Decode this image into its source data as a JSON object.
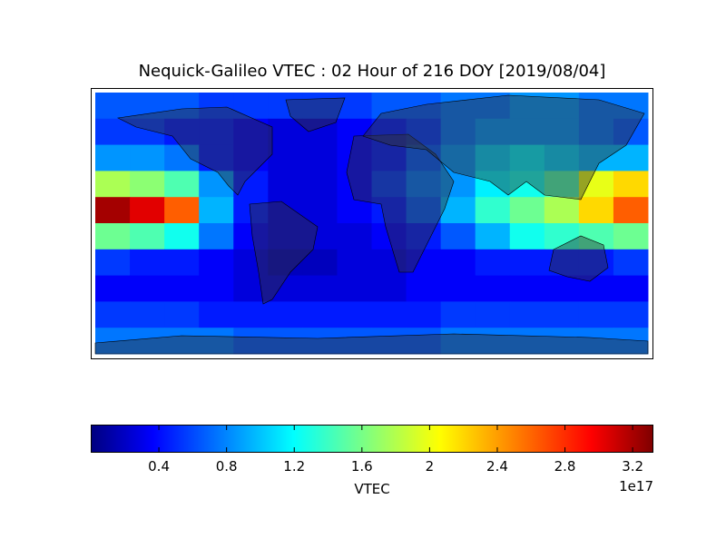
{
  "chart_data": {
    "type": "heatmap",
    "title": "Nequick-Galileo VTEC : 02 Hour of 216 DOY [2019/08/04]",
    "xlim": [
      -180,
      180
    ],
    "ylim": [
      -90,
      90
    ],
    "values": [
      [
        0.7,
        0.7,
        0.7,
        0.6,
        0.6,
        0.6,
        0.6,
        0.6,
        0.7,
        0.7,
        0.8,
        0.8,
        0.9,
        0.9,
        0.8,
        0.8
      ],
      [
        0.6,
        0.6,
        0.5,
        0.5,
        0.4,
        0.3,
        0.3,
        0.4,
        0.5,
        0.6,
        0.8,
        0.9,
        0.9,
        0.9,
        0.8,
        0.7
      ],
      [
        0.9,
        0.9,
        0.8,
        0.5,
        0.4,
        0.3,
        0.3,
        0.4,
        0.5,
        0.7,
        0.9,
        1.1,
        1.2,
        1.1,
        1.0,
        1.0
      ],
      [
        1.8,
        1.7,
        1.5,
        0.9,
        0.5,
        0.3,
        0.3,
        0.4,
        0.6,
        0.8,
        0.9,
        1.2,
        1.3,
        1.5,
        2.0,
        2.2
      ],
      [
        3.2,
        3.0,
        2.6,
        1.0,
        0.5,
        0.3,
        0.3,
        0.4,
        0.5,
        0.7,
        1.0,
        1.4,
        1.6,
        1.8,
        2.2,
        2.6
      ],
      [
        1.6,
        1.5,
        1.3,
        0.8,
        0.4,
        0.3,
        0.3,
        0.3,
        0.4,
        0.5,
        0.7,
        1.0,
        1.3,
        1.4,
        1.5,
        1.6
      ],
      [
        0.6,
        0.5,
        0.5,
        0.4,
        0.3,
        0.2,
        0.2,
        0.3,
        0.3,
        0.4,
        0.4,
        0.5,
        0.5,
        0.5,
        0.5,
        0.6
      ],
      [
        0.4,
        0.4,
        0.4,
        0.4,
        0.3,
        0.3,
        0.3,
        0.3,
        0.3,
        0.4,
        0.4,
        0.4,
        0.4,
        0.4,
        0.4,
        0.4
      ],
      [
        0.6,
        0.6,
        0.6,
        0.5,
        0.5,
        0.5,
        0.5,
        0.5,
        0.5,
        0.5,
        0.6,
        0.6,
        0.6,
        0.6,
        0.6,
        0.6
      ],
      [
        0.8,
        0.8,
        0.8,
        0.8,
        0.7,
        0.7,
        0.7,
        0.7,
        0.7,
        0.7,
        0.8,
        0.8,
        0.8,
        0.8,
        0.8,
        0.8
      ]
    ],
    "colormap": "jet",
    "clim": [
      0,
      3.32
    ],
    "cticks": [
      0.4,
      0.8,
      1.2,
      1.6,
      2.0,
      2.4,
      2.8,
      3.2
    ],
    "colorbar_label": "VTEC",
    "colorbar_offset": "1e17"
  }
}
